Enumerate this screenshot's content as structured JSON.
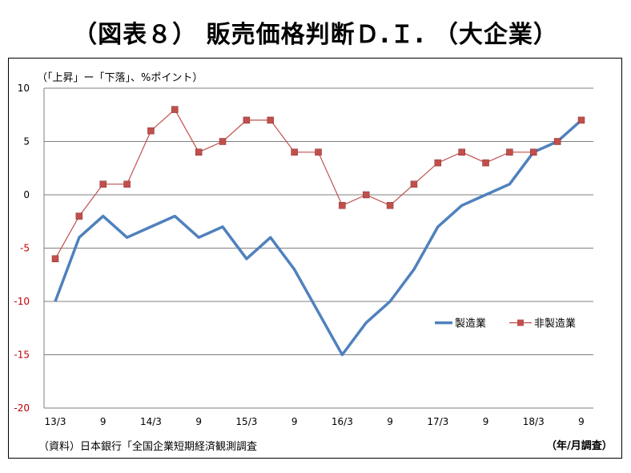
{
  "title": "（図表８） 販売価格判断Ｄ.Ｉ. （大企業）",
  "unit_label": "（「上昇」ー「下落」、%ポイント）",
  "source": "（資料）日本銀行「全国企業短期経済観測調査",
  "period_note": "（年/月調査）",
  "colors": {
    "manufacturing": "#4F81BD",
    "non_manufacturing": "#C0504D",
    "negative_tick": "#C00000"
  },
  "chart_data": {
    "type": "line",
    "categories": [
      "13/3",
      "",
      "9",
      "",
      "14/3",
      "",
      "9",
      "",
      "15/3",
      "",
      "9",
      "",
      "16/3",
      "",
      "9",
      "",
      "17/3",
      "",
      "9",
      "",
      "18/3",
      "",
      "9"
    ],
    "x_tick_labels": [
      "13/3",
      "9",
      "14/3",
      "9",
      "15/3",
      "9",
      "16/3",
      "9",
      "17/3",
      "9",
      "18/3",
      "9"
    ],
    "y_ticks": [
      10,
      5,
      0,
      -5,
      -10,
      -15,
      -20
    ],
    "ylim": [
      -20,
      10
    ],
    "grid": true,
    "legend_position": "right-middle",
    "series": [
      {
        "name": "製造業",
        "values": [
          -10,
          -4,
          -2,
          -4,
          -3,
          -2,
          -4,
          -3,
          -6,
          -4,
          -7,
          -11,
          -15,
          -12,
          -10,
          -7,
          -3,
          -1,
          0,
          1,
          4,
          5,
          7
        ]
      },
      {
        "name": "非製造業",
        "values": [
          -6,
          -2,
          1,
          1,
          6,
          8,
          4,
          5,
          7,
          7,
          4,
          4,
          -1,
          0,
          -1,
          1,
          3,
          4,
          3,
          4,
          4,
          5,
          7
        ]
      }
    ]
  }
}
